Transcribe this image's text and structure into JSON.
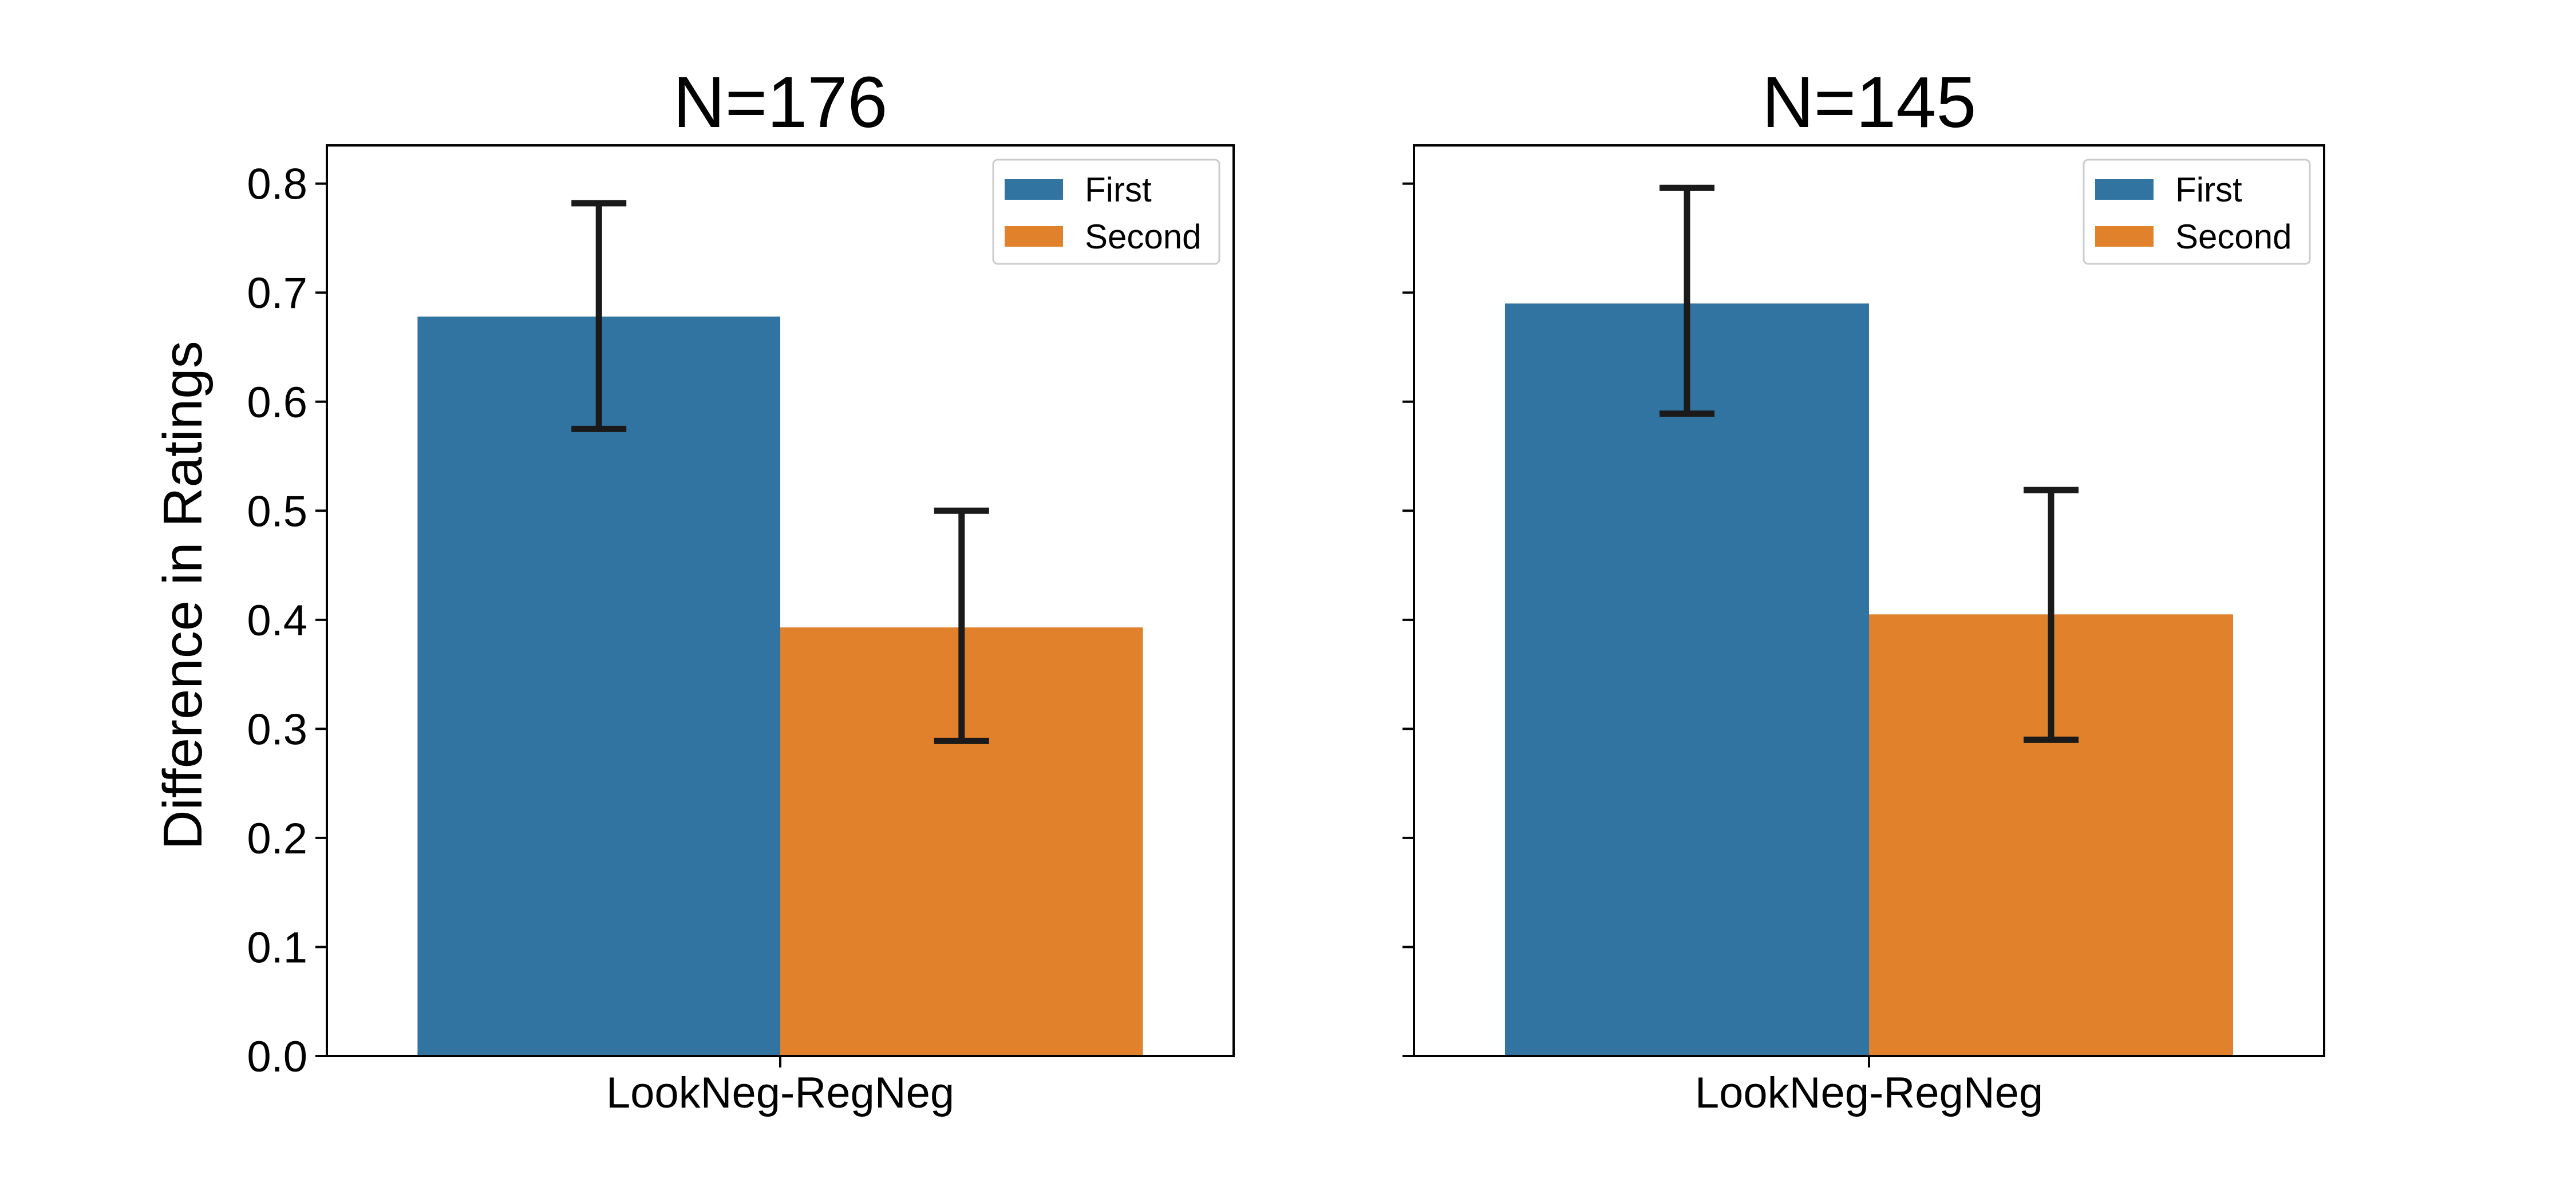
{
  "colors": {
    "first": "#3274a1",
    "second": "#e1812c",
    "errorbar": "#1a1a1a",
    "frame": "#000000"
  },
  "shared_ylabel": "Difference in Ratings",
  "chart_data": [
    {
      "type": "bar",
      "title": "N=176",
      "xlabel": "",
      "ylabel": "Difference in Ratings",
      "categories": [
        "LookNeg-RegNeg"
      ],
      "ylim": [
        0,
        0.835
      ],
      "yticks": [
        "0.0",
        "0.1",
        "0.2",
        "0.3",
        "0.4",
        "0.5",
        "0.6",
        "0.7",
        "0.8"
      ],
      "ytick_labels_shown": true,
      "grid": false,
      "legend": "top-right",
      "series": [
        {
          "name": "First",
          "values": [
            0.678
          ],
          "err_low": [
            0.575
          ],
          "err_high": [
            0.782
          ]
        },
        {
          "name": "Second",
          "values": [
            0.393
          ],
          "err_low": [
            0.289
          ],
          "err_high": [
            0.5
          ]
        }
      ]
    },
    {
      "type": "bar",
      "title": "N=145",
      "xlabel": "",
      "ylabel": "",
      "categories": [
        "LookNeg-RegNeg"
      ],
      "ylim": [
        0,
        0.835
      ],
      "yticks": [
        "0.0",
        "0.1",
        "0.2",
        "0.3",
        "0.4",
        "0.5",
        "0.6",
        "0.7",
        "0.8"
      ],
      "ytick_labels_shown": false,
      "grid": false,
      "legend": "top-right",
      "series": [
        {
          "name": "First",
          "values": [
            0.69
          ],
          "err_low": [
            0.589
          ],
          "err_high": [
            0.796
          ]
        },
        {
          "name": "Second",
          "values": [
            0.405
          ],
          "err_low": [
            0.29
          ],
          "err_high": [
            0.519
          ]
        }
      ]
    }
  ]
}
